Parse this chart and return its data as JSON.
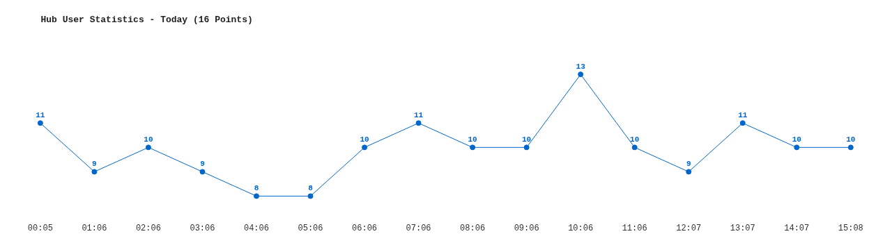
{
  "chart_data": {
    "type": "line",
    "title": "Hub User Statistics - Today (16 Points)",
    "categories": [
      "00:05",
      "01:06",
      "02:06",
      "03:06",
      "04:06",
      "05:06",
      "06:06",
      "07:06",
      "08:06",
      "09:06",
      "10:06",
      "11:06",
      "12:07",
      "13:07",
      "14:07",
      "15:08"
    ],
    "series": [
      {
        "color": "#0066cc",
        "values": [
          11,
          9,
          10,
          9,
          8,
          8,
          10,
          11,
          10,
          10,
          13,
          10,
          9,
          11,
          10,
          10
        ]
      }
    ],
    "data_labels": true,
    "marker": "circle",
    "tick_labels": "x"
  }
}
